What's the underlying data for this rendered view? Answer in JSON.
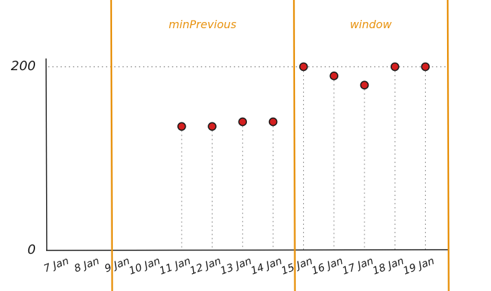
{
  "chart_data": {
    "type": "scatter",
    "x": [
      "7 Jan",
      "8 Jan",
      "9 Jan",
      "10 Jan",
      "11 Jan",
      "12 Jan",
      "13 Jan",
      "14 Jan",
      "15 Jan",
      "16 Jan",
      "17 Jan",
      "18 Jan",
      "19 Jan"
    ],
    "series": [
      {
        "points": [
          {
            "x": "11 Jan",
            "y": 135
          },
          {
            "x": "12 Jan",
            "y": 135
          },
          {
            "x": "13 Jan",
            "y": 140
          },
          {
            "x": "14 Jan",
            "y": 140
          },
          {
            "x": "15 Jan",
            "y": 200
          },
          {
            "x": "16 Jan",
            "y": 190
          },
          {
            "x": "17 Jan",
            "y": 180
          },
          {
            "x": "18 Jan",
            "y": 200
          },
          {
            "x": "19 Jan",
            "y": 200
          }
        ],
        "color": "#d42020"
      }
    ],
    "y_ticks": [
      {
        "value": 0,
        "label": "0"
      },
      {
        "value": 200,
        "label": "200"
      }
    ],
    "ylim": [
      0,
      200
    ],
    "reference_line": {
      "y": 200,
      "style": "dotted"
    },
    "regions": [
      {
        "label": "minPrevious",
        "start": "9 Jan",
        "end": "15 Jan"
      },
      {
        "label": "window",
        "start": "15 Jan",
        "end": "19 Jan"
      }
    ],
    "region_color": "#e8920e",
    "grid": false
  }
}
